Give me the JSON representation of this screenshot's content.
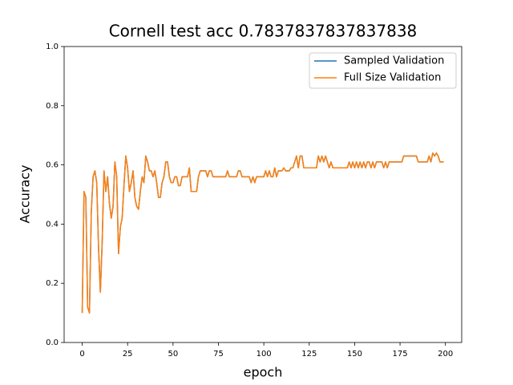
{
  "chart_data": {
    "type": "line",
    "title": "Cornell test acc 0.7837837837837838",
    "x_label": "epoch",
    "y_label": "Accuracy",
    "x": [
      0,
      1,
      2,
      3,
      4,
      5,
      6,
      7,
      8,
      9,
      10,
      11,
      12,
      13,
      14,
      15,
      16,
      17,
      18,
      19,
      20,
      21,
      22,
      23,
      24,
      25,
      26,
      27,
      28,
      29,
      30,
      31,
      32,
      33,
      34,
      35,
      36,
      37,
      38,
      39,
      40,
      41,
      42,
      43,
      44,
      45,
      46,
      47,
      48,
      49,
      50,
      51,
      52,
      53,
      54,
      55,
      56,
      57,
      58,
      59,
      60,
      61,
      62,
      63,
      64,
      65,
      66,
      67,
      68,
      69,
      70,
      71,
      72,
      73,
      74,
      75,
      76,
      77,
      78,
      79,
      80,
      81,
      82,
      83,
      84,
      85,
      86,
      87,
      88,
      89,
      90,
      91,
      92,
      93,
      94,
      95,
      96,
      97,
      98,
      99,
      100,
      101,
      102,
      103,
      104,
      105,
      106,
      107,
      108,
      109,
      110,
      111,
      112,
      113,
      114,
      115,
      116,
      117,
      118,
      119,
      120,
      121,
      122,
      123,
      124,
      125,
      126,
      127,
      128,
      129,
      130,
      131,
      132,
      133,
      134,
      135,
      136,
      137,
      138,
      139,
      140,
      141,
      142,
      143,
      144,
      145,
      146,
      147,
      148,
      149,
      150,
      151,
      152,
      153,
      154,
      155,
      156,
      157,
      158,
      159,
      160,
      161,
      162,
      163,
      164,
      165,
      166,
      167,
      168,
      169,
      170,
      171,
      172,
      173,
      174,
      175,
      176,
      177,
      178,
      179,
      180,
      181,
      182,
      183,
      184,
      185,
      186,
      187,
      188,
      189,
      190,
      191,
      192,
      193,
      194,
      195,
      196,
      197,
      198,
      199
    ],
    "series": [
      {
        "name": "Sampled Validation",
        "color": "#1f77b4",
        "values": [
          0.1,
          0.51,
          0.49,
          0.12,
          0.1,
          0.44,
          0.56,
          0.58,
          0.54,
          0.32,
          0.17,
          0.34,
          0.58,
          0.51,
          0.56,
          0.47,
          0.42,
          0.46,
          0.61,
          0.56,
          0.3,
          0.39,
          0.42,
          0.53,
          0.63,
          0.59,
          0.51,
          0.54,
          0.58,
          0.49,
          0.46,
          0.45,
          0.51,
          0.56,
          0.54,
          0.63,
          0.61,
          0.58,
          0.58,
          0.56,
          0.58,
          0.54,
          0.49,
          0.49,
          0.54,
          0.56,
          0.61,
          0.61,
          0.56,
          0.54,
          0.54,
          0.56,
          0.56,
          0.53,
          0.53,
          0.56,
          0.56,
          0.56,
          0.56,
          0.59,
          0.51,
          0.51,
          0.51,
          0.51,
          0.56,
          0.58,
          0.58,
          0.58,
          0.58,
          0.56,
          0.58,
          0.58,
          0.56,
          0.56,
          0.56,
          0.56,
          0.56,
          0.56,
          0.56,
          0.56,
          0.58,
          0.56,
          0.56,
          0.56,
          0.56,
          0.56,
          0.58,
          0.58,
          0.56,
          0.56,
          0.56,
          0.56,
          0.56,
          0.54,
          0.56,
          0.54,
          0.56,
          0.56,
          0.56,
          0.56,
          0.56,
          0.58,
          0.56,
          0.58,
          0.56,
          0.56,
          0.59,
          0.56,
          0.58,
          0.58,
          0.58,
          0.59,
          0.58,
          0.58,
          0.58,
          0.59,
          0.59,
          0.61,
          0.63,
          0.59,
          0.63,
          0.63,
          0.59,
          0.59,
          0.59,
          0.59,
          0.59,
          0.59,
          0.59,
          0.59,
          0.63,
          0.61,
          0.63,
          0.61,
          0.63,
          0.61,
          0.59,
          0.61,
          0.59,
          0.59,
          0.59,
          0.59,
          0.59,
          0.59,
          0.59,
          0.59,
          0.59,
          0.61,
          0.59,
          0.61,
          0.59,
          0.61,
          0.59,
          0.61,
          0.59,
          0.61,
          0.59,
          0.61,
          0.61,
          0.59,
          0.61,
          0.59,
          0.61,
          0.61,
          0.61,
          0.61,
          0.59,
          0.61,
          0.59,
          0.61,
          0.61,
          0.61,
          0.61,
          0.61,
          0.61,
          0.61,
          0.61,
          0.63,
          0.63,
          0.63,
          0.63,
          0.63,
          0.63,
          0.63,
          0.63,
          0.61,
          0.61,
          0.61,
          0.61,
          0.61,
          0.61,
          0.63,
          0.61,
          0.64,
          0.63,
          0.64,
          0.63,
          0.61,
          0.61,
          0.61
        ]
      },
      {
        "name": "Full Size Validation",
        "color": "#ff7f0e",
        "values": [
          0.1,
          0.51,
          0.49,
          0.12,
          0.1,
          0.44,
          0.56,
          0.58,
          0.54,
          0.32,
          0.17,
          0.34,
          0.58,
          0.51,
          0.56,
          0.47,
          0.42,
          0.46,
          0.61,
          0.56,
          0.3,
          0.39,
          0.42,
          0.53,
          0.63,
          0.59,
          0.51,
          0.54,
          0.58,
          0.49,
          0.46,
          0.45,
          0.51,
          0.56,
          0.54,
          0.63,
          0.61,
          0.58,
          0.58,
          0.56,
          0.58,
          0.54,
          0.49,
          0.49,
          0.54,
          0.56,
          0.61,
          0.61,
          0.56,
          0.54,
          0.54,
          0.56,
          0.56,
          0.53,
          0.53,
          0.56,
          0.56,
          0.56,
          0.56,
          0.59,
          0.51,
          0.51,
          0.51,
          0.51,
          0.56,
          0.58,
          0.58,
          0.58,
          0.58,
          0.56,
          0.58,
          0.58,
          0.56,
          0.56,
          0.56,
          0.56,
          0.56,
          0.56,
          0.56,
          0.56,
          0.58,
          0.56,
          0.56,
          0.56,
          0.56,
          0.56,
          0.58,
          0.58,
          0.56,
          0.56,
          0.56,
          0.56,
          0.56,
          0.54,
          0.56,
          0.54,
          0.56,
          0.56,
          0.56,
          0.56,
          0.56,
          0.58,
          0.56,
          0.58,
          0.56,
          0.56,
          0.59,
          0.56,
          0.58,
          0.58,
          0.58,
          0.59,
          0.58,
          0.58,
          0.58,
          0.59,
          0.59,
          0.61,
          0.63,
          0.59,
          0.63,
          0.63,
          0.59,
          0.59,
          0.59,
          0.59,
          0.59,
          0.59,
          0.59,
          0.59,
          0.63,
          0.61,
          0.63,
          0.61,
          0.63,
          0.61,
          0.59,
          0.61,
          0.59,
          0.59,
          0.59,
          0.59,
          0.59,
          0.59,
          0.59,
          0.59,
          0.59,
          0.61,
          0.59,
          0.61,
          0.59,
          0.61,
          0.59,
          0.61,
          0.59,
          0.61,
          0.59,
          0.61,
          0.61,
          0.59,
          0.61,
          0.59,
          0.61,
          0.61,
          0.61,
          0.61,
          0.59,
          0.61,
          0.59,
          0.61,
          0.61,
          0.61,
          0.61,
          0.61,
          0.61,
          0.61,
          0.61,
          0.63,
          0.63,
          0.63,
          0.63,
          0.63,
          0.63,
          0.63,
          0.63,
          0.61,
          0.61,
          0.61,
          0.61,
          0.61,
          0.61,
          0.63,
          0.61,
          0.64,
          0.63,
          0.64,
          0.63,
          0.61,
          0.61,
          0.61
        ]
      }
    ],
    "xlim": [
      -9.95,
      208.95
    ],
    "xticks": [
      0,
      25,
      50,
      75,
      100,
      125,
      150,
      175,
      200
    ],
    "ylim": [
      0,
      1
    ],
    "yticks": [
      {
        "value": 0,
        "label": "0.0"
      },
      0.2,
      0.4,
      0.6,
      0.8,
      {
        "value": 1,
        "label": "1.0"
      }
    ],
    "grid": false,
    "legend": "upper right"
  }
}
